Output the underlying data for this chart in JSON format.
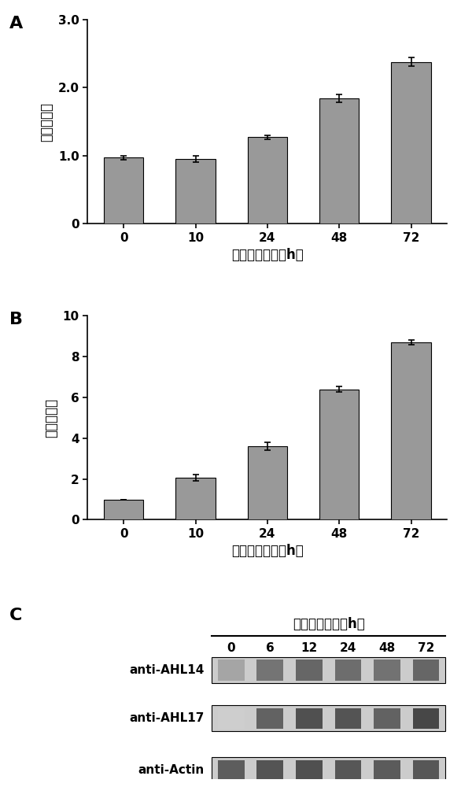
{
  "panel_A": {
    "categories": [
      "0",
      "10",
      "24",
      "48",
      "72"
    ],
    "values": [
      0.97,
      0.95,
      1.27,
      1.84,
      2.38
    ],
    "errors": [
      0.03,
      0.05,
      0.03,
      0.06,
      0.06
    ],
    "ylabel": "相对表达量",
    "xlabel": "低温处理时间（h）",
    "ylim": [
      0,
      3.0
    ],
    "yticks": [
      0,
      1.0,
      2.0,
      3.0
    ],
    "yticklabels": [
      "0",
      "1.0",
      "2.0",
      "3.0"
    ],
    "bar_color": "#999999",
    "label": "A"
  },
  "panel_B": {
    "categories": [
      "0",
      "10",
      "24",
      "48",
      "72"
    ],
    "values": [
      1.0,
      2.05,
      3.6,
      6.4,
      8.7
    ],
    "errors": [
      0.0,
      0.15,
      0.2,
      0.15,
      0.12
    ],
    "ylabel": "相对表达量",
    "xlabel": "低温处理时间（h）",
    "ylim": [
      0,
      10
    ],
    "yticks": [
      0,
      2,
      4,
      6,
      8,
      10
    ],
    "yticklabels": [
      "0",
      "2",
      "4",
      "6",
      "8",
      "10"
    ],
    "bar_color": "#999999",
    "label": "B"
  },
  "panel_C": {
    "title": "低温处理时间（h）",
    "col_labels": [
      "0",
      "6",
      "12",
      "24",
      "48",
      "72"
    ],
    "row_labels": [
      "anti-AHL14",
      "anti-AHL17",
      "anti-Actin"
    ],
    "ahl14_intensities": [
      0.4,
      0.62,
      0.68,
      0.65,
      0.63,
      0.68
    ],
    "ahl17_intensities": [
      0.22,
      0.7,
      0.78,
      0.76,
      0.7,
      0.82
    ],
    "actin_intensities": [
      0.72,
      0.76,
      0.78,
      0.75,
      0.73,
      0.75
    ],
    "label": "C"
  },
  "bar_edge_color": "black",
  "bar_linewidth": 0.8,
  "font_size": 12,
  "tick_font_size": 11,
  "label_font_size": 16,
  "background_color": "#ffffff"
}
